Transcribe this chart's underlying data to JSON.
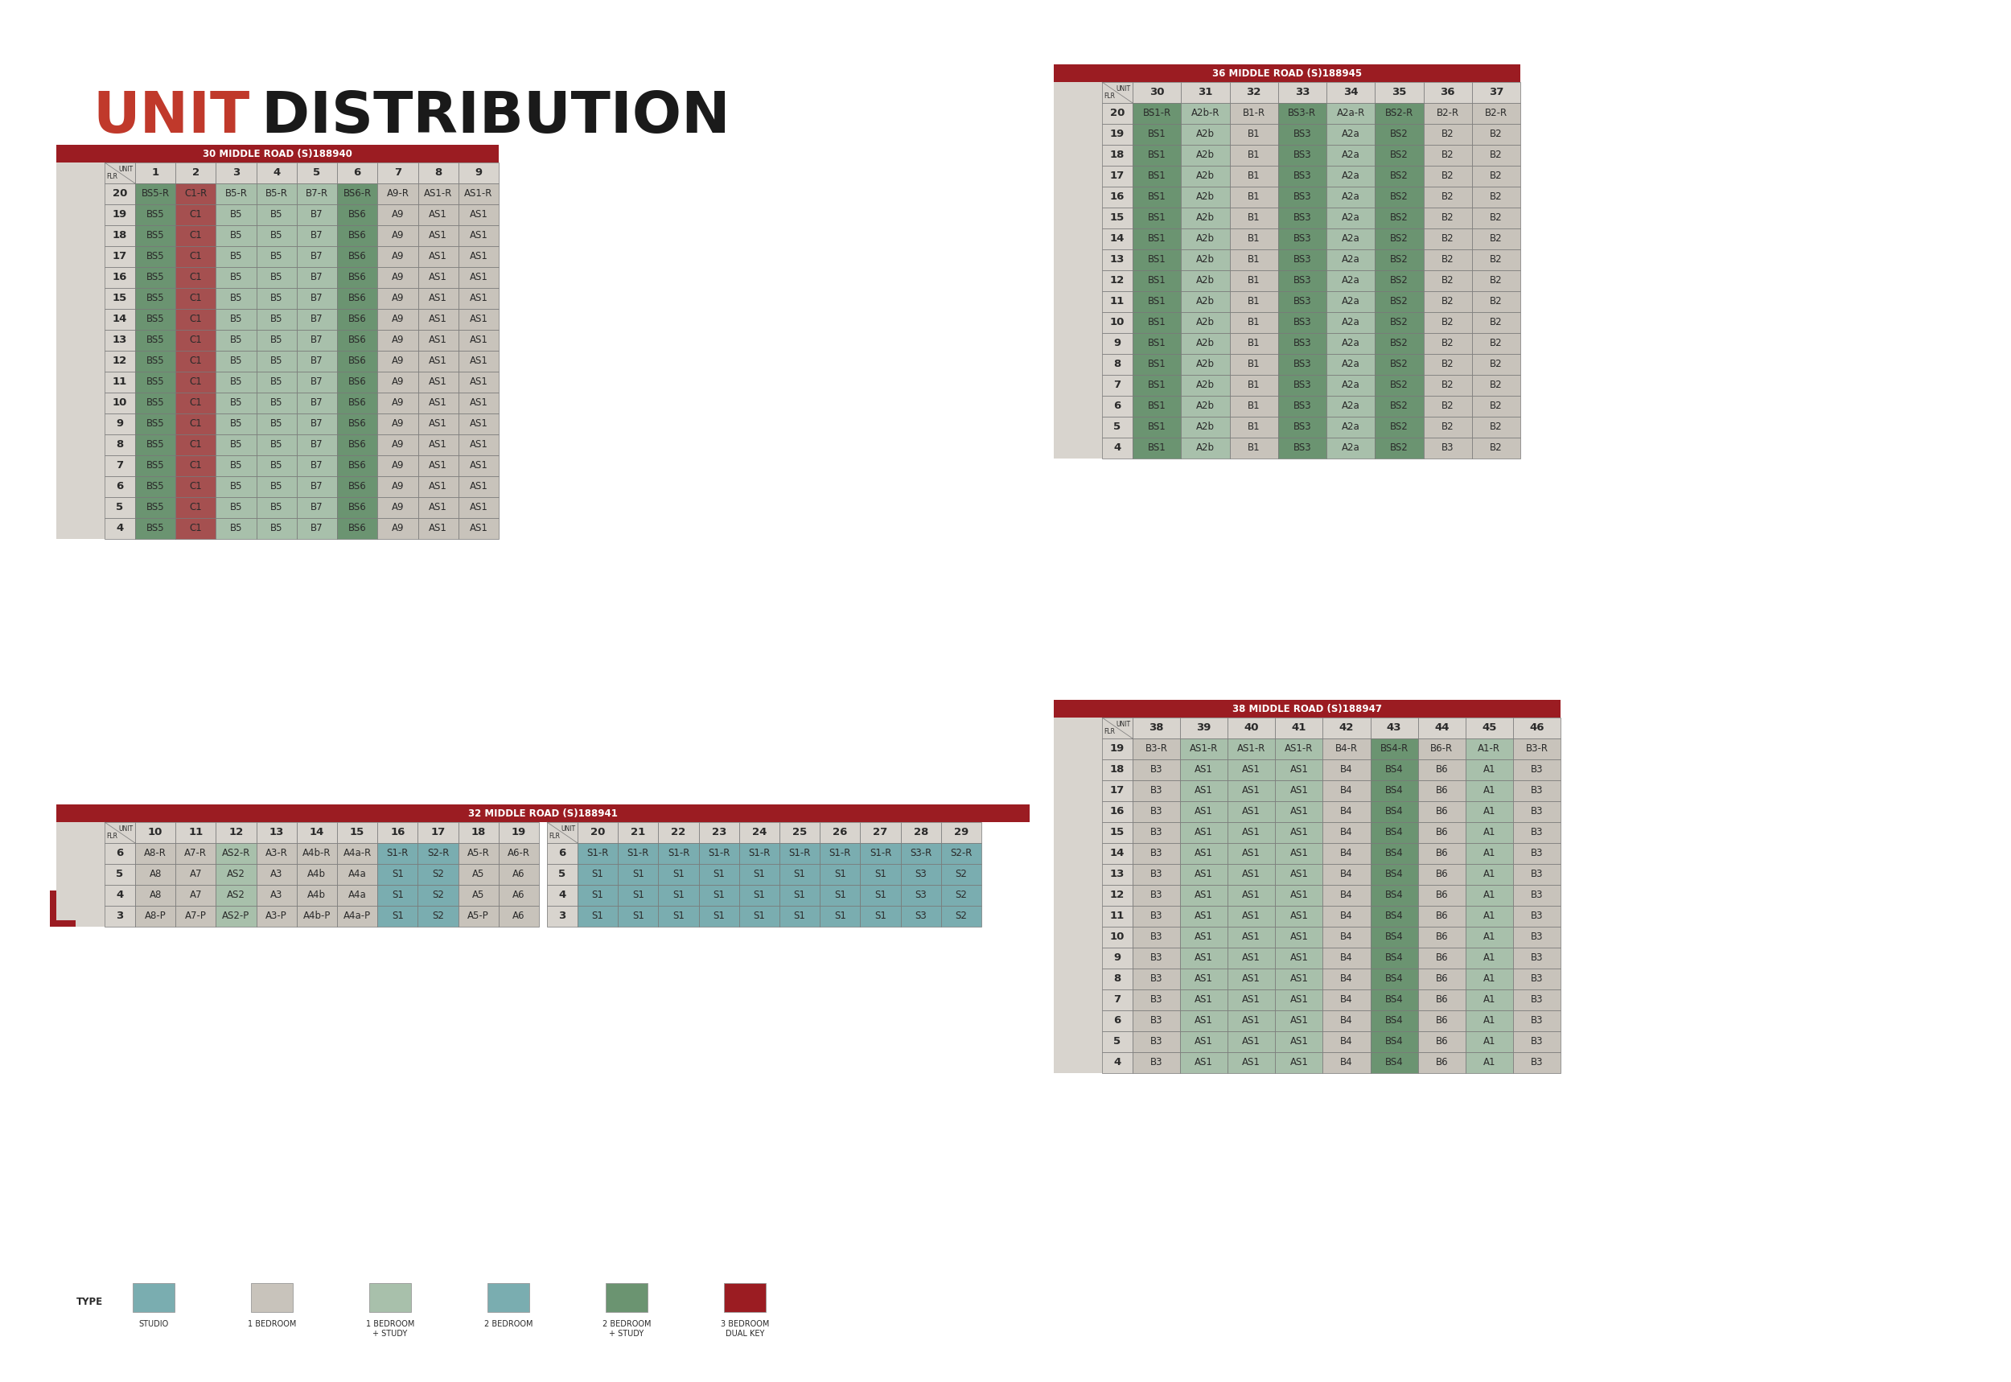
{
  "title_bold": "UNIT",
  "title_regular": " DISTRIBUTION",
  "bg_color": "#ffffff",
  "table_bg": "#d8d4ce",
  "header_red": "#9b1c22",
  "header_text": "#ffffff",
  "cell_green_dark": "#6b9471",
  "cell_green_light": "#a8c0ab",
  "cell_red_dark": "#a55050",
  "cell_beige": "#c8c3bb",
  "cell_teal": "#7aadb0",
  "text_dark": "#2a2a2a",
  "legend_colors": [
    "#7aadb0",
    "#c8c3bb",
    "#a8c0ab",
    "#7aadb0",
    "#6b9471",
    "#9b1c22"
  ],
  "legend_labels": [
    "STUDIO",
    "1 BEDROOM",
    "1 BEDROOM\n+ STUDY",
    "2 BEDROOM",
    "2 BEDROOM\n+ STUDY",
    "3 BEDROOM\nDUAL KEY"
  ],
  "table30": {
    "title": "30 MIDDLE ROAD (S)188940",
    "col_headers": [
      "1",
      "2",
      "3",
      "4",
      "5",
      "6",
      "7",
      "8",
      "9"
    ],
    "rows": [
      {
        "floor": "20",
        "cells": [
          "BS5-R",
          "C1-R",
          "B5-R",
          "B5-R",
          "B7-R",
          "BS6-R",
          "A9-R",
          "AS1-R",
          "AS1-R"
        ]
      },
      {
        "floor": "19",
        "cells": [
          "BS5",
          "C1",
          "B5",
          "B5",
          "B7",
          "BS6",
          "A9",
          "AS1",
          "AS1"
        ]
      },
      {
        "floor": "18",
        "cells": [
          "BS5",
          "C1",
          "B5",
          "B5",
          "B7",
          "BS6",
          "A9",
          "AS1",
          "AS1"
        ]
      },
      {
        "floor": "17",
        "cells": [
          "BS5",
          "C1",
          "B5",
          "B5",
          "B7",
          "BS6",
          "A9",
          "AS1",
          "AS1"
        ]
      },
      {
        "floor": "16",
        "cells": [
          "BS5",
          "C1",
          "B5",
          "B5",
          "B7",
          "BS6",
          "A9",
          "AS1",
          "AS1"
        ]
      },
      {
        "floor": "15",
        "cells": [
          "BS5",
          "C1",
          "B5",
          "B5",
          "B7",
          "BS6",
          "A9",
          "AS1",
          "AS1"
        ]
      },
      {
        "floor": "14",
        "cells": [
          "BS5",
          "C1",
          "B5",
          "B5",
          "B7",
          "BS6",
          "A9",
          "AS1",
          "AS1"
        ]
      },
      {
        "floor": "13",
        "cells": [
          "BS5",
          "C1",
          "B5",
          "B5",
          "B7",
          "BS6",
          "A9",
          "AS1",
          "AS1"
        ]
      },
      {
        "floor": "12",
        "cells": [
          "BS5",
          "C1",
          "B5",
          "B5",
          "B7",
          "BS6",
          "A9",
          "AS1",
          "AS1"
        ]
      },
      {
        "floor": "11",
        "cells": [
          "BS5",
          "C1",
          "B5",
          "B5",
          "B7",
          "BS6",
          "A9",
          "AS1",
          "AS1"
        ]
      },
      {
        "floor": "10",
        "cells": [
          "BS5",
          "C1",
          "B5",
          "B5",
          "B7",
          "BS6",
          "A9",
          "AS1",
          "AS1"
        ]
      },
      {
        "floor": "9",
        "cells": [
          "BS5",
          "C1",
          "B5",
          "B5",
          "B7",
          "BS6",
          "A9",
          "AS1",
          "AS1"
        ]
      },
      {
        "floor": "8",
        "cells": [
          "BS5",
          "C1",
          "B5",
          "B5",
          "B7",
          "BS6",
          "A9",
          "AS1",
          "AS1"
        ]
      },
      {
        "floor": "7",
        "cells": [
          "BS5",
          "C1",
          "B5",
          "B5",
          "B7",
          "BS6",
          "A9",
          "AS1",
          "AS1"
        ]
      },
      {
        "floor": "6",
        "cells": [
          "BS5",
          "C1",
          "B5",
          "B5",
          "B7",
          "BS6",
          "A9",
          "AS1",
          "AS1"
        ]
      },
      {
        "floor": "5",
        "cells": [
          "BS5",
          "C1",
          "B5",
          "B5",
          "B7",
          "BS6",
          "A9",
          "AS1",
          "AS1"
        ]
      },
      {
        "floor": "4",
        "cells": [
          "BS5",
          "C1",
          "B5",
          "B5",
          "B7",
          "BS6",
          "A9",
          "AS1",
          "AS1"
        ]
      }
    ],
    "cell_colors": {
      "BS5-R": "#6b9471",
      "BS5": "#6b9471",
      "C1-R": "#a55050",
      "C1": "#a55050",
      "B5-R": "#a8c0ab",
      "B5": "#a8c0ab",
      "B7-R": "#a8c0ab",
      "B7": "#a8c0ab",
      "BS6-R": "#6b9471",
      "BS6": "#6b9471",
      "A9-R": "#c8c3bb",
      "A9": "#c8c3bb",
      "AS1-R": "#c8c3bb",
      "AS1": "#c8c3bb"
    }
  },
  "table32a": {
    "title": "32 MIDDLE ROAD (S)188941",
    "col_headers": [
      "10",
      "11",
      "12",
      "13",
      "14",
      "15",
      "16",
      "17",
      "18",
      "19"
    ],
    "rows": [
      {
        "floor": "6",
        "cells": [
          "A8-R",
          "A7-R",
          "AS2-R",
          "A3-R",
          "A4b-R",
          "A4a-R",
          "S1-R",
          "S2-R",
          "A5-R",
          "A6-R"
        ]
      },
      {
        "floor": "5",
        "cells": [
          "A8",
          "A7",
          "AS2",
          "A3",
          "A4b",
          "A4a",
          "S1",
          "S2",
          "A5",
          "A6"
        ]
      },
      {
        "floor": "4",
        "cells": [
          "A8",
          "A7",
          "AS2",
          "A3",
          "A4b",
          "A4a",
          "S1",
          "S2",
          "A5",
          "A6"
        ]
      },
      {
        "floor": "3",
        "cells": [
          "A8-P",
          "A7-P",
          "AS2-P",
          "A3-P",
          "A4b-P",
          "A4a-P",
          "S1",
          "S2",
          "A5-P",
          "A6"
        ]
      }
    ],
    "cell_colors": {
      "A8-R": "#c8c3bb",
      "A7-R": "#c8c3bb",
      "AS2-R": "#a8c0ab",
      "A3-R": "#c8c3bb",
      "A4b-R": "#c8c3bb",
      "A4a-R": "#c8c3bb",
      "S1-R": "#7aadb0",
      "S2-R": "#7aadb0",
      "A5-R": "#c8c3bb",
      "A6-R": "#c8c3bb",
      "A8": "#c8c3bb",
      "A7": "#c8c3bb",
      "AS2": "#a8c0ab",
      "A3": "#c8c3bb",
      "A4b": "#c8c3bb",
      "A4a": "#c8c3bb",
      "S1": "#7aadb0",
      "S2": "#7aadb0",
      "A5": "#c8c3bb",
      "A6": "#c8c3bb",
      "A8-P": "#c8c3bb",
      "A7-P": "#c8c3bb",
      "AS2-P": "#a8c0ab",
      "A3-P": "#c8c3bb",
      "A4b-P": "#c8c3bb",
      "A4a-P": "#c8c3bb",
      "A5-P": "#c8c3bb"
    }
  },
  "table32b": {
    "col_headers": [
      "20",
      "21",
      "22",
      "23",
      "24",
      "25",
      "26",
      "27",
      "28",
      "29"
    ],
    "rows": [
      {
        "floor": "6",
        "cells": [
          "S1-R",
          "S1-R",
          "S1-R",
          "S1-R",
          "S1-R",
          "S1-R",
          "S1-R",
          "S1-R",
          "S3-R",
          "S2-R"
        ]
      },
      {
        "floor": "5",
        "cells": [
          "S1",
          "S1",
          "S1",
          "S1",
          "S1",
          "S1",
          "S1",
          "S1",
          "S3",
          "S2"
        ]
      },
      {
        "floor": "4",
        "cells": [
          "S1",
          "S1",
          "S1",
          "S1",
          "S1",
          "S1",
          "S1",
          "S1",
          "S3",
          "S2"
        ]
      },
      {
        "floor": "3",
        "cells": [
          "S1",
          "S1",
          "S1",
          "S1",
          "S1",
          "S1",
          "S1",
          "S1",
          "S3",
          "S2"
        ]
      }
    ],
    "cell_colors": {
      "S1-R": "#7aadb0",
      "S1": "#7aadb0",
      "S2-R": "#7aadb0",
      "S2": "#7aadb0",
      "S3-R": "#7aadb0",
      "S3": "#7aadb0"
    }
  },
  "table36": {
    "title": "36 MIDDLE ROAD (S)188945",
    "col_headers": [
      "30",
      "31",
      "32",
      "33",
      "34",
      "35",
      "36",
      "37"
    ],
    "rows": [
      {
        "floor": "20",
        "cells": [
          "BS1-R",
          "A2b-R",
          "B1-R",
          "BS3-R",
          "A2a-R",
          "BS2-R",
          "B2-R",
          "B2-R"
        ]
      },
      {
        "floor": "19",
        "cells": [
          "BS1",
          "A2b",
          "B1",
          "BS3",
          "A2a",
          "BS2",
          "B2",
          "B2"
        ]
      },
      {
        "floor": "18",
        "cells": [
          "BS1",
          "A2b",
          "B1",
          "BS3",
          "A2a",
          "BS2",
          "B2",
          "B2"
        ]
      },
      {
        "floor": "17",
        "cells": [
          "BS1",
          "A2b",
          "B1",
          "BS3",
          "A2a",
          "BS2",
          "B2",
          "B2"
        ]
      },
      {
        "floor": "16",
        "cells": [
          "BS1",
          "A2b",
          "B1",
          "BS3",
          "A2a",
          "BS2",
          "B2",
          "B2"
        ]
      },
      {
        "floor": "15",
        "cells": [
          "BS1",
          "A2b",
          "B1",
          "BS3",
          "A2a",
          "BS2",
          "B2",
          "B2"
        ]
      },
      {
        "floor": "14",
        "cells": [
          "BS1",
          "A2b",
          "B1",
          "BS3",
          "A2a",
          "BS2",
          "B2",
          "B2"
        ]
      },
      {
        "floor": "13",
        "cells": [
          "BS1",
          "A2b",
          "B1",
          "BS3",
          "A2a",
          "BS2",
          "B2",
          "B2"
        ]
      },
      {
        "floor": "12",
        "cells": [
          "BS1",
          "A2b",
          "B1",
          "BS3",
          "A2a",
          "BS2",
          "B2",
          "B2"
        ]
      },
      {
        "floor": "11",
        "cells": [
          "BS1",
          "A2b",
          "B1",
          "BS3",
          "A2a",
          "BS2",
          "B2",
          "B2"
        ]
      },
      {
        "floor": "10",
        "cells": [
          "BS1",
          "A2b",
          "B1",
          "BS3",
          "A2a",
          "BS2",
          "B2",
          "B2"
        ]
      },
      {
        "floor": "9",
        "cells": [
          "BS1",
          "A2b",
          "B1",
          "BS3",
          "A2a",
          "BS2",
          "B2",
          "B2"
        ]
      },
      {
        "floor": "8",
        "cells": [
          "BS1",
          "A2b",
          "B1",
          "BS3",
          "A2a",
          "BS2",
          "B2",
          "B2"
        ]
      },
      {
        "floor": "7",
        "cells": [
          "BS1",
          "A2b",
          "B1",
          "BS3",
          "A2a",
          "BS2",
          "B2",
          "B2"
        ]
      },
      {
        "floor": "6",
        "cells": [
          "BS1",
          "A2b",
          "B1",
          "BS3",
          "A2a",
          "BS2",
          "B2",
          "B2"
        ]
      },
      {
        "floor": "5",
        "cells": [
          "BS1",
          "A2b",
          "B1",
          "BS3",
          "A2a",
          "BS2",
          "B2",
          "B2"
        ]
      },
      {
        "floor": "4",
        "cells": [
          "BS1",
          "A2b",
          "B1",
          "BS3",
          "A2a",
          "BS2",
          "B3",
          "B2"
        ]
      }
    ],
    "cell_colors": {
      "BS1-R": "#6b9471",
      "BS1": "#6b9471",
      "A2b-R": "#a8c0ab",
      "A2b": "#a8c0ab",
      "B1-R": "#c8c3bb",
      "B1": "#c8c3bb",
      "BS3-R": "#6b9471",
      "BS3": "#6b9471",
      "A2a-R": "#a8c0ab",
      "A2a": "#a8c0ab",
      "BS2-R": "#6b9471",
      "BS2": "#6b9471",
      "B2-R": "#c8c3bb",
      "B2": "#c8c3bb",
      "B3": "#c8c3bb"
    }
  },
  "table38": {
    "title": "38 MIDDLE ROAD (S)188947",
    "col_headers": [
      "38",
      "39",
      "40",
      "41",
      "42",
      "43",
      "44",
      "45",
      "46"
    ],
    "rows": [
      {
        "floor": "19",
        "cells": [
          "B3-R",
          "AS1-R",
          "AS1-R",
          "AS1-R",
          "B4-R",
          "BS4-R",
          "B6-R",
          "A1-R",
          "B3-R"
        ]
      },
      {
        "floor": "18",
        "cells": [
          "B3",
          "AS1",
          "AS1",
          "AS1",
          "B4",
          "BS4",
          "B6",
          "A1",
          "B3"
        ]
      },
      {
        "floor": "17",
        "cells": [
          "B3",
          "AS1",
          "AS1",
          "AS1",
          "B4",
          "BS4",
          "B6",
          "A1",
          "B3"
        ]
      },
      {
        "floor": "16",
        "cells": [
          "B3",
          "AS1",
          "AS1",
          "AS1",
          "B4",
          "BS4",
          "B6",
          "A1",
          "B3"
        ]
      },
      {
        "floor": "15",
        "cells": [
          "B3",
          "AS1",
          "AS1",
          "AS1",
          "B4",
          "BS4",
          "B6",
          "A1",
          "B3"
        ]
      },
      {
        "floor": "14",
        "cells": [
          "B3",
          "AS1",
          "AS1",
          "AS1",
          "B4",
          "BS4",
          "B6",
          "A1",
          "B3"
        ]
      },
      {
        "floor": "13",
        "cells": [
          "B3",
          "AS1",
          "AS1",
          "AS1",
          "B4",
          "BS4",
          "B6",
          "A1",
          "B3"
        ]
      },
      {
        "floor": "12",
        "cells": [
          "B3",
          "AS1",
          "AS1",
          "AS1",
          "B4",
          "BS4",
          "B6",
          "A1",
          "B3"
        ]
      },
      {
        "floor": "11",
        "cells": [
          "B3",
          "AS1",
          "AS1",
          "AS1",
          "B4",
          "BS4",
          "B6",
          "A1",
          "B3"
        ]
      },
      {
        "floor": "10",
        "cells": [
          "B3",
          "AS1",
          "AS1",
          "AS1",
          "B4",
          "BS4",
          "B6",
          "A1",
          "B3"
        ]
      },
      {
        "floor": "9",
        "cells": [
          "B3",
          "AS1",
          "AS1",
          "AS1",
          "B4",
          "BS4",
          "B6",
          "A1",
          "B3"
        ]
      },
      {
        "floor": "8",
        "cells": [
          "B3",
          "AS1",
          "AS1",
          "AS1",
          "B4",
          "BS4",
          "B6",
          "A1",
          "B3"
        ]
      },
      {
        "floor": "7",
        "cells": [
          "B3",
          "AS1",
          "AS1",
          "AS1",
          "B4",
          "BS4",
          "B6",
          "A1",
          "B3"
        ]
      },
      {
        "floor": "6",
        "cells": [
          "B3",
          "AS1",
          "AS1",
          "AS1",
          "B4",
          "BS4",
          "B6",
          "A1",
          "B3"
        ]
      },
      {
        "floor": "5",
        "cells": [
          "B3",
          "AS1",
          "AS1",
          "AS1",
          "B4",
          "BS4",
          "B6",
          "A1",
          "B3"
        ]
      },
      {
        "floor": "4",
        "cells": [
          "B3",
          "AS1",
          "AS1",
          "AS1",
          "B4",
          "BS4",
          "B6",
          "A1",
          "B3"
        ]
      }
    ],
    "cell_colors": {
      "B3-R": "#c8c3bb",
      "B3": "#c8c3bb",
      "AS1-R": "#a8c0ab",
      "AS1": "#a8c0ab",
      "B4-R": "#c8c3bb",
      "B4": "#c8c3bb",
      "BS4-R": "#6b9471",
      "BS4": "#6b9471",
      "B6-R": "#c8c3bb",
      "B6": "#c8c3bb",
      "A1-R": "#a8c0ab",
      "A1": "#a8c0ab"
    }
  }
}
